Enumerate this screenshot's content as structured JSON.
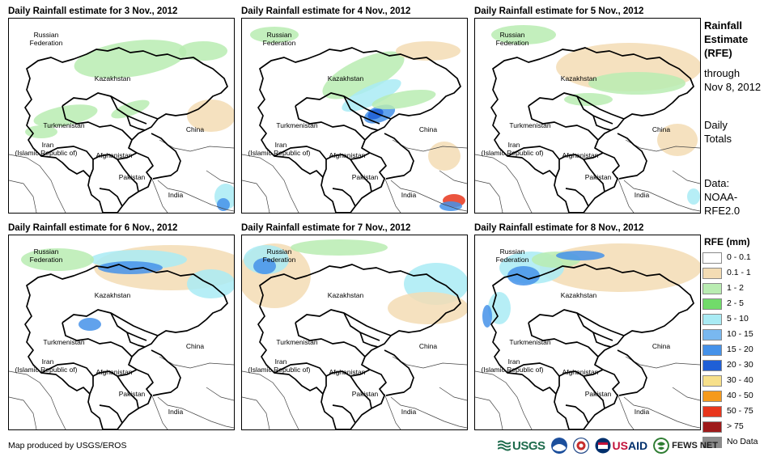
{
  "panels": [
    {
      "title": "Daily Rainfall estimate for 3 Nov., 2012"
    },
    {
      "title": "Daily Rainfall estimate for 4 Nov., 2012"
    },
    {
      "title": "Daily Rainfall estimate for 5 Nov., 2012"
    },
    {
      "title": "Daily Rainfall estimate for 6 Nov., 2012"
    },
    {
      "title": "Daily Rainfall estimate for 7 Nov., 2012"
    },
    {
      "title": "Daily Rainfall estimate for 8 Nov., 2012"
    }
  ],
  "map_labels": {
    "russia_1": "Russian",
    "russia_2": "Federation",
    "kazakhstan": "Kazakhstan",
    "turkmenistan": "Turkmenistan",
    "iran_1": "Iran",
    "iran_2": "(Islamic Republic of)",
    "afghanistan": "Afghanistan",
    "pakistan": "Pakistan",
    "china": "China",
    "india": "India"
  },
  "side_info": {
    "title_lines": [
      "Rainfall",
      "Estimate",
      "(RFE)"
    ],
    "through_lines": [
      "through",
      "Nov 8, 2012"
    ],
    "totals_lines": [
      "Daily",
      "Totals"
    ],
    "data_lines": [
      "Data:",
      "NOAA-",
      "RFE2.0"
    ]
  },
  "legend": {
    "title": "RFE (mm)",
    "items": [
      {
        "label": "0 - 0.1",
        "color": "#ffffff"
      },
      {
        "label": "0.1 - 1",
        "color": "#f3dcb4"
      },
      {
        "label": "1 - 2",
        "color": "#b9ecb1"
      },
      {
        "label": "2 - 5",
        "color": "#71db6a"
      },
      {
        "label": "5 - 10",
        "color": "#a9ebf4"
      },
      {
        "label": "10 - 15",
        "color": "#79b8f0"
      },
      {
        "label": "15 - 20",
        "color": "#4592e9"
      },
      {
        "label": "20 - 30",
        "color": "#1f5fd6"
      },
      {
        "label": "30 - 40",
        "color": "#f7e08a"
      },
      {
        "label": "40 - 50",
        "color": "#f59a1c"
      },
      {
        "label": "50 - 75",
        "color": "#e8361c"
      },
      {
        "label": "> 75",
        "color": "#9e1a1a"
      },
      {
        "label": "No Data",
        "color": "#8c8c8c"
      }
    ]
  },
  "footer": {
    "credit": "Map produced by USGS/EROS",
    "usgs": "USGS",
    "usaid_u": "US",
    "usaid_rest": "AID",
    "fews": "FEWS NET"
  },
  "colors": {
    "tan": "#f3dcb4",
    "light_green": "#b9ecb1",
    "green": "#71db6a",
    "cyan": "#a9ebf4",
    "blue": "#4592e9",
    "dark_blue": "#1f5fd6",
    "red": "#e8361c"
  }
}
